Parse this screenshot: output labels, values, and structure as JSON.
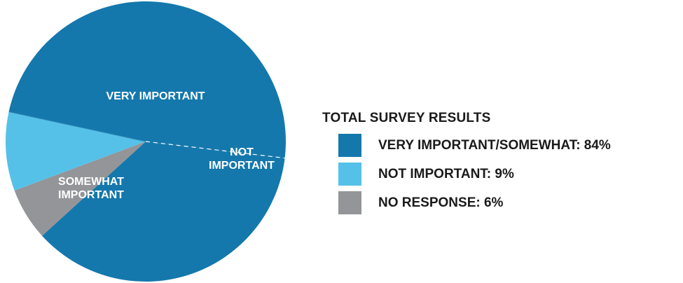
{
  "chart_data": {
    "type": "pie",
    "title": "TOTAL SURVEY RESULTS",
    "slices": [
      {
        "key": "very_important",
        "label": [
          "VERY IMPORTANT"
        ],
        "value": 48,
        "color": "#1478ac"
      },
      {
        "key": "somewhat_important",
        "label": [
          "SOMEWHAT",
          "IMPORTANT"
        ],
        "value": 36,
        "color": "#1478ac"
      },
      {
        "key": "no_response",
        "label": [],
        "value": 6,
        "color": "#939598"
      },
      {
        "key": "not_important",
        "label": [
          "NOT",
          "IMPORTANT"
        ],
        "value": 9,
        "color": "#56c1e8"
      }
    ],
    "legend": [
      {
        "text": "VERY IMPORTANT/SOMEWHAT: 84%",
        "color": "#1478ac"
      },
      {
        "text": "NOT IMPORTANT: 9%",
        "color": "#56c1e8"
      },
      {
        "text": "NO RESPONSE: 6%",
        "color": "#939598"
      }
    ],
    "legend_position": "right"
  }
}
